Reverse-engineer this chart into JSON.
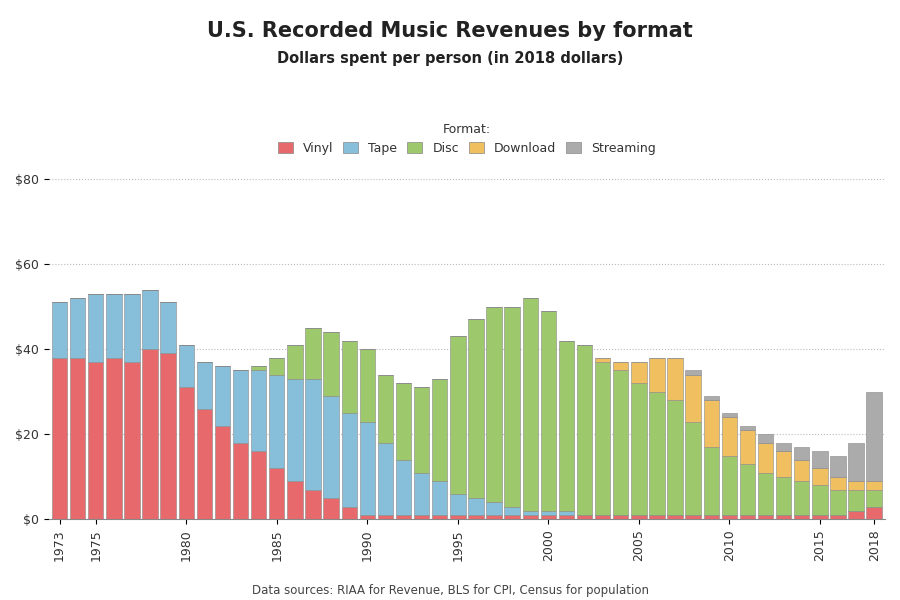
{
  "title": "U.S. Recorded Music Revenues by format",
  "subtitle": "Dollars spent per person (in 2018 dollars)",
  "source": "Data sources: RIAA for Revenue, BLS for CPI, Census for population",
  "legend_label": "Format:",
  "formats": [
    "Vinyl",
    "Tape",
    "Disc",
    "Download",
    "Streaming"
  ],
  "colors": {
    "Vinyl": "#E8696B",
    "Tape": "#87BFDA",
    "Disc": "#9DC86B",
    "Download": "#F0C060",
    "Streaming": "#ABABAB"
  },
  "years": [
    1973,
    1974,
    1975,
    1976,
    1977,
    1978,
    1979,
    1980,
    1981,
    1982,
    1983,
    1984,
    1985,
    1986,
    1987,
    1988,
    1989,
    1990,
    1991,
    1992,
    1993,
    1994,
    1995,
    1996,
    1997,
    1998,
    1999,
    2000,
    2001,
    2002,
    2003,
    2004,
    2005,
    2006,
    2007,
    2008,
    2009,
    2010,
    2011,
    2012,
    2013,
    2014,
    2015,
    2016,
    2017,
    2018
  ],
  "data": {
    "Vinyl": [
      38,
      38,
      37,
      38,
      37,
      40,
      39,
      31,
      26,
      22,
      18,
      16,
      12,
      9,
      7,
      5,
      3,
      1,
      1,
      1,
      1,
      1,
      1,
      1,
      1,
      1,
      1,
      1,
      1,
      1,
      1,
      1,
      1,
      1,
      1,
      1,
      1,
      1,
      1,
      1,
      1,
      1,
      1,
      1,
      2,
      3
    ],
    "Tape": [
      13,
      14,
      16,
      15,
      16,
      14,
      12,
      10,
      11,
      14,
      17,
      19,
      22,
      24,
      26,
      24,
      22,
      22,
      17,
      13,
      10,
      8,
      5,
      4,
      3,
      2,
      1,
      1,
      1,
      0,
      0,
      0,
      0,
      0,
      0,
      0,
      0,
      0,
      0,
      0,
      0,
      0,
      0,
      0,
      0,
      0
    ],
    "Disc": [
      0,
      0,
      0,
      0,
      0,
      0,
      0,
      0,
      0,
      0,
      0,
      1,
      4,
      8,
      12,
      15,
      17,
      17,
      16,
      18,
      20,
      24,
      37,
      42,
      46,
      47,
      50,
      47,
      40,
      40,
      36,
      34,
      31,
      29,
      27,
      22,
      16,
      14,
      12,
      10,
      9,
      8,
      7,
      6,
      5,
      4
    ],
    "Download": [
      0,
      0,
      0,
      0,
      0,
      0,
      0,
      0,
      0,
      0,
      0,
      0,
      0,
      0,
      0,
      0,
      0,
      0,
      0,
      0,
      0,
      0,
      0,
      0,
      0,
      0,
      0,
      0,
      0,
      0,
      1,
      2,
      5,
      8,
      10,
      11,
      11,
      9,
      8,
      7,
      6,
      5,
      4,
      3,
      2,
      2
    ],
    "Streaming": [
      0,
      0,
      0,
      0,
      0,
      0,
      0,
      0,
      0,
      0,
      0,
      0,
      0,
      0,
      0,
      0,
      0,
      0,
      0,
      0,
      0,
      0,
      0,
      0,
      0,
      0,
      0,
      0,
      0,
      0,
      0,
      0,
      0,
      0,
      0,
      1,
      1,
      1,
      1,
      2,
      2,
      3,
      4,
      5,
      9,
      21
    ]
  },
  "ylim": [
    0,
    82
  ],
  "yticks": [
    0,
    20,
    40,
    60,
    80
  ],
  "ytick_labels": [
    "$0",
    "$20",
    "$40",
    "$60",
    "$80"
  ],
  "background_color": "#FFFFFF",
  "grid_color": "#BBBBBB",
  "bar_edge_color": "#888888",
  "bar_edge_width": 0.4,
  "tick_years": [
    1973,
    1975,
    1980,
    1985,
    1990,
    1995,
    2000,
    2005,
    2010,
    2015,
    2018
  ]
}
